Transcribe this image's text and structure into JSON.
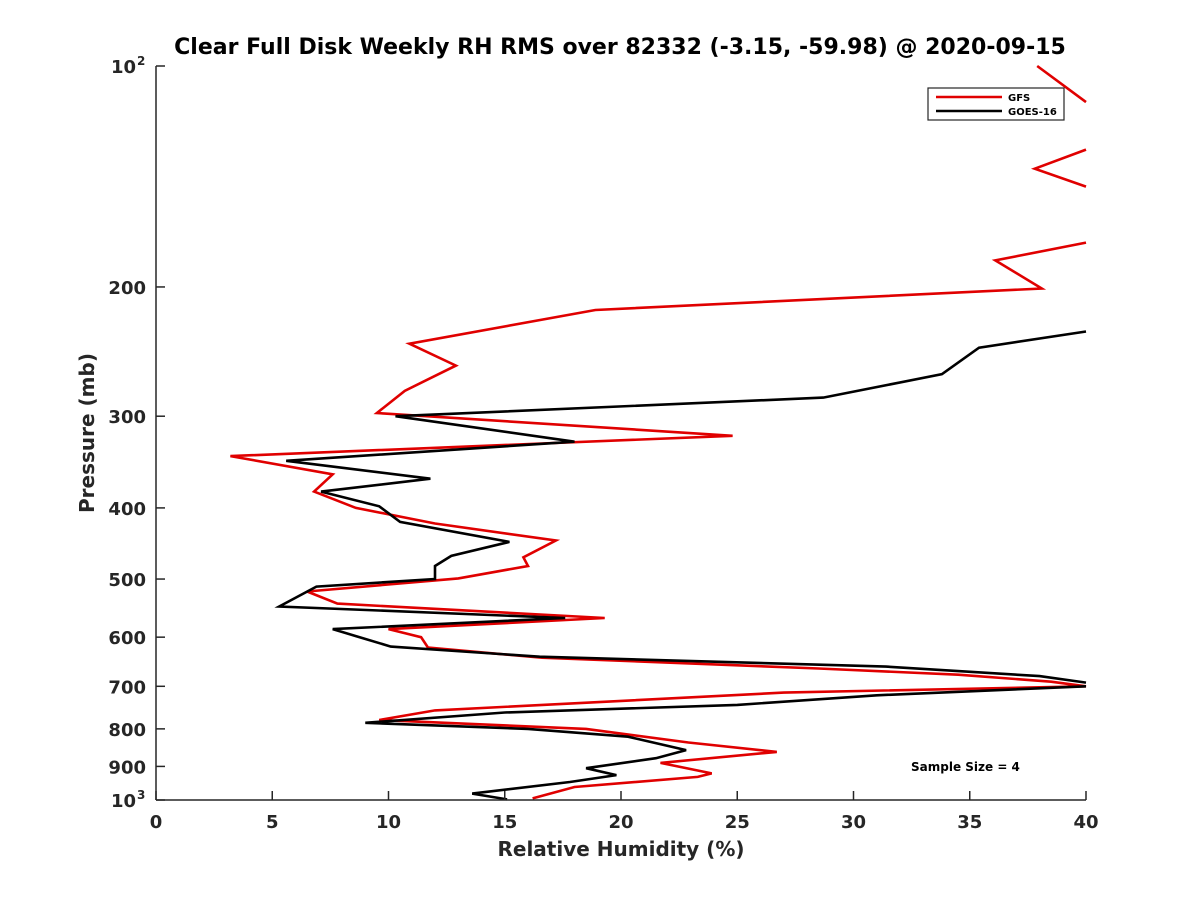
{
  "chart_data": {
    "type": "line",
    "title": "Clear Full Disk Weekly RH RMS over 82332 (-3.15, -59.98) @ 2020-09-15",
    "xlabel": "Relative Humidity (%)",
    "ylabel": "Pressure (mb)",
    "xlim": [
      0,
      40
    ],
    "ylim": [
      100,
      1000
    ],
    "y_scale": "log",
    "y_reversed": true,
    "grid": false,
    "legend_position": "top-right",
    "x_ticks": [
      0,
      5,
      10,
      15,
      20,
      25,
      30,
      35,
      40
    ],
    "y_ticks": [
      {
        "value": 100,
        "label": "10",
        "sup": "2"
      },
      {
        "value": 200,
        "label": "200",
        "sup": ""
      },
      {
        "value": 300,
        "label": "300",
        "sup": ""
      },
      {
        "value": 400,
        "label": "400",
        "sup": ""
      },
      {
        "value": 500,
        "label": "500",
        "sup": ""
      },
      {
        "value": 600,
        "label": "600",
        "sup": ""
      },
      {
        "value": 700,
        "label": "700",
        "sup": ""
      },
      {
        "value": 800,
        "label": "800",
        "sup": ""
      },
      {
        "value": 900,
        "label": "900",
        "sup": ""
      },
      {
        "value": 1000,
        "label": "10",
        "sup": "3"
      }
    ],
    "series": [
      {
        "name": "GFS",
        "color": "#e00000",
        "points": [
          [
            37.9,
            100
          ],
          [
            40,
            112
          ],
          null,
          [
            40,
            130
          ],
          [
            37.8,
            138
          ],
          [
            40,
            146
          ],
          null,
          [
            40,
            174
          ],
          [
            36.1,
            184
          ],
          [
            38.1,
            201
          ],
          [
            18.9,
            215
          ],
          [
            10.9,
            239
          ],
          [
            12.9,
            256
          ],
          [
            10.7,
            277
          ],
          [
            9.5,
            297
          ],
          [
            24.8,
            319
          ],
          [
            3.2,
            340
          ],
          [
            7.6,
            360
          ],
          [
            6.8,
            380
          ],
          [
            8.6,
            400
          ],
          [
            12.0,
            420
          ],
          [
            17.2,
            443
          ],
          [
            15.8,
            467
          ],
          [
            16.0,
            480
          ],
          [
            13.0,
            499
          ],
          [
            6.5,
            520
          ],
          [
            7.8,
            540
          ],
          [
            19.3,
            565
          ],
          [
            10.0,
            585
          ],
          [
            11.4,
            600
          ],
          [
            11.7,
            620
          ],
          [
            16.6,
            640
          ],
          [
            28.5,
            662
          ],
          [
            34.5,
            675
          ],
          [
            38.5,
            690
          ],
          [
            40,
            700
          ],
          [
            27.0,
            714
          ],
          [
            12.0,
            755
          ],
          [
            9.6,
            778
          ],
          [
            18.5,
            800
          ],
          [
            22.9,
            835
          ],
          [
            26.7,
            860
          ],
          [
            21.7,
            890
          ],
          [
            23.9,
            920
          ],
          [
            23.3,
            930
          ],
          [
            18.0,
            960
          ],
          [
            16.2,
            995
          ]
        ]
      },
      {
        "name": "GOES-16",
        "color": "#000000",
        "points": [
          [
            40,
            230
          ],
          [
            35.4,
            242
          ],
          [
            33.8,
            263
          ],
          [
            28.7,
            283
          ],
          [
            10.3,
            300
          ],
          [
            18.0,
            325
          ],
          [
            5.6,
            345
          ],
          [
            11.8,
            365
          ],
          [
            7.1,
            380
          ],
          [
            9.6,
            398
          ],
          [
            10.5,
            418
          ],
          [
            15.2,
            445
          ],
          [
            12.7,
            465
          ],
          [
            12.0,
            480
          ],
          [
            12.0,
            500
          ],
          [
            6.9,
            512
          ],
          [
            5.3,
            545
          ],
          [
            17.6,
            565
          ],
          [
            7.6,
            585
          ],
          [
            8.6,
            598
          ],
          [
            10.1,
            618
          ],
          [
            16.5,
            638
          ],
          [
            31.4,
            658
          ],
          [
            38.0,
            678
          ],
          [
            40,
            692
          ],
          null,
          [
            40,
            700
          ],
          [
            31.0,
            720
          ],
          [
            25.0,
            742
          ],
          [
            15.0,
            760
          ],
          [
            9.0,
            785
          ],
          [
            16.0,
            800
          ],
          [
            20.3,
            820
          ],
          [
            22.8,
            855
          ],
          [
            21.5,
            877
          ],
          [
            18.5,
            905
          ],
          [
            19.8,
            925
          ],
          [
            17.8,
            945
          ],
          [
            13.6,
            980
          ],
          [
            15.1,
            998
          ]
        ]
      }
    ],
    "annotations": [
      "Sample Size = 4"
    ]
  }
}
